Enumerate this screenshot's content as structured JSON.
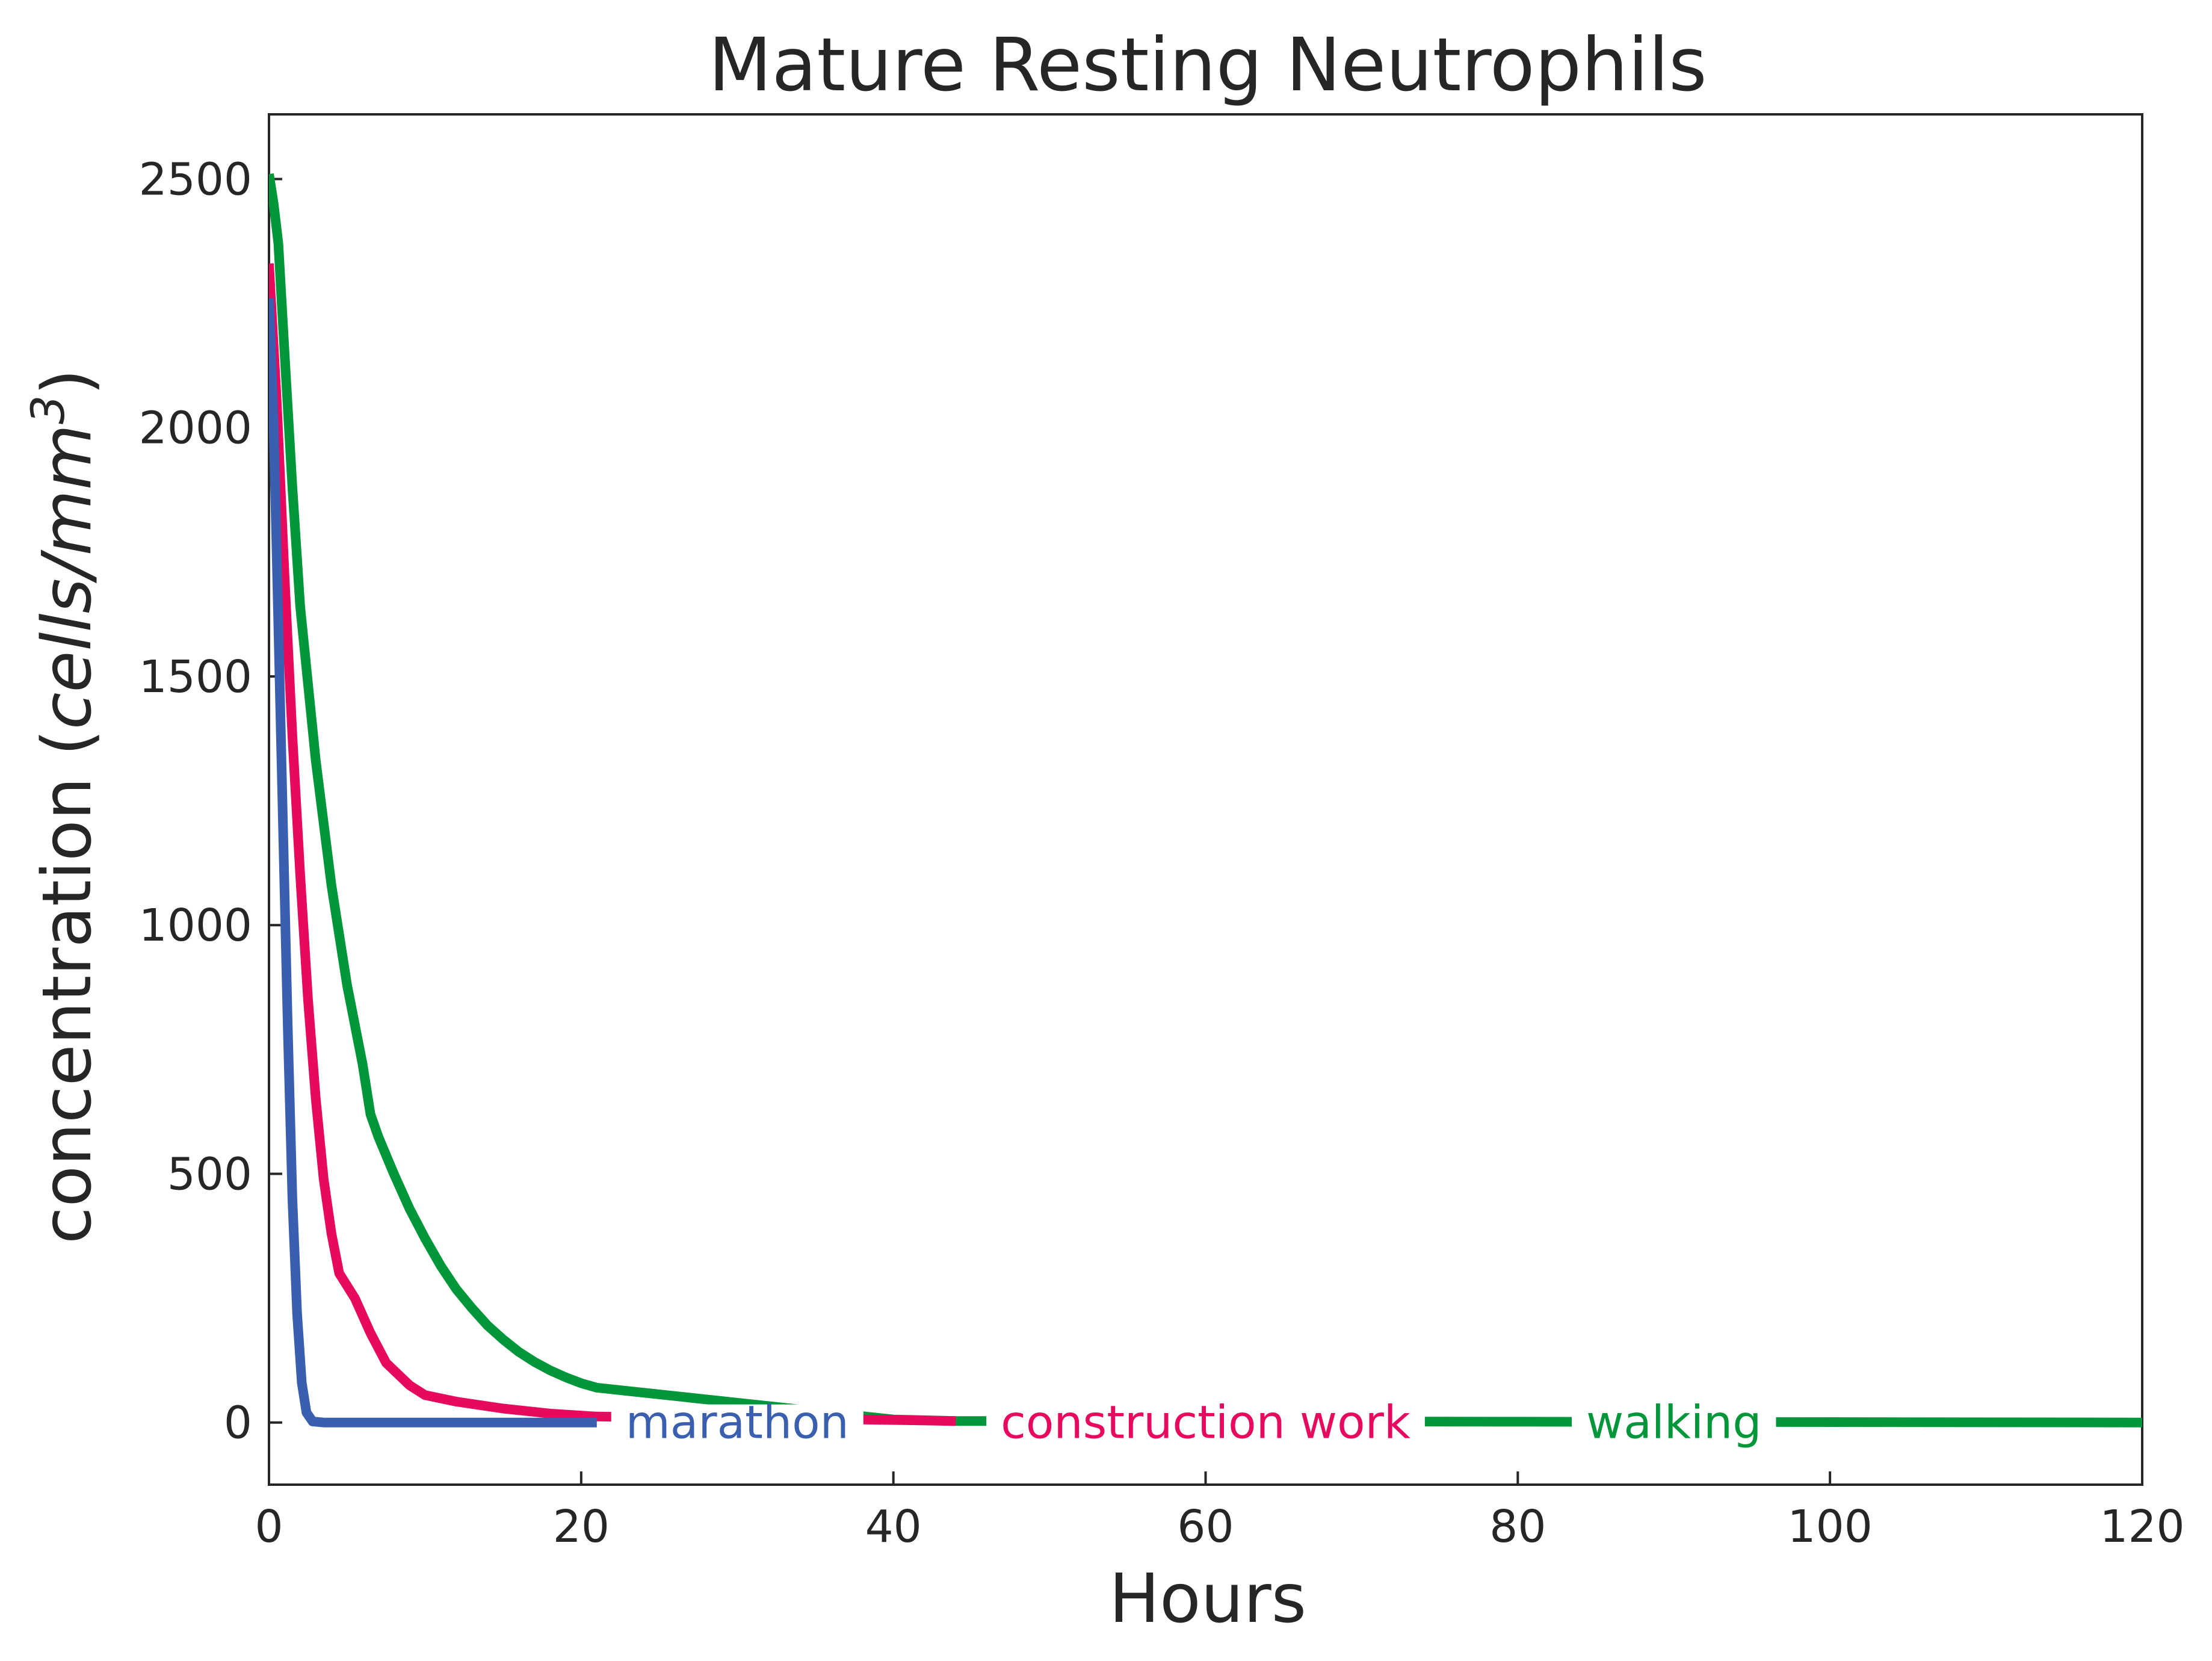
{
  "chart_data": {
    "type": "line",
    "title": "Mature Resting Neutrophils",
    "xlabel": "Hours",
    "ylabel": "concentration (cells/mm³)",
    "ylabel_parts": {
      "prefix": "concentration (",
      "unit_italic": "cells/mm",
      "superscript": "3",
      "suffix": ")"
    },
    "xlim": [
      0,
      120
    ],
    "ylim": [
      -125,
      2630
    ],
    "xticks": [
      0,
      20,
      40,
      60,
      80,
      100,
      120
    ],
    "yticks": [
      0,
      500,
      1000,
      1500,
      2000,
      2500
    ],
    "grid": false,
    "legend": "inline labels along zero line",
    "series": [
      {
        "name": "marathon",
        "color": "#3a5fae",
        "label_x": 30,
        "label_y": 0,
        "points": [
          [
            0,
            2260
          ],
          [
            0.3,
            2000
          ],
          [
            0.6,
            1600
          ],
          [
            0.9,
            1200
          ],
          [
            1.2,
            800
          ],
          [
            1.5,
            450
          ],
          [
            1.8,
            220
          ],
          [
            2.1,
            80
          ],
          [
            2.4,
            20
          ],
          [
            2.8,
            2
          ],
          [
            3.5,
            0
          ],
          [
            21,
            0
          ]
        ]
      },
      {
        "name": "construction work",
        "color": "#e6095e",
        "label_x": 60,
        "label_y": 0,
        "points": [
          [
            0,
            2330
          ],
          [
            0.5,
            2050
          ],
          [
            1,
            1700
          ],
          [
            1.5,
            1380
          ],
          [
            2,
            1100
          ],
          [
            2.5,
            850
          ],
          [
            3,
            650
          ],
          [
            3.5,
            490
          ],
          [
            4,
            380
          ],
          [
            4.5,
            300
          ],
          [
            5.5,
            250
          ],
          [
            6.5,
            180
          ],
          [
            7.5,
            120
          ],
          [
            9,
            75
          ],
          [
            10,
            55
          ],
          [
            12,
            42
          ],
          [
            15,
            28
          ],
          [
            18,
            18
          ],
          [
            21,
            12
          ],
          [
            38,
            6
          ],
          [
            44,
            3
          ]
        ]
      },
      {
        "name": "walking",
        "color": "#009639",
        "label_x": 90,
        "label_y": 0,
        "points": [
          [
            0,
            2510
          ],
          [
            0.3,
            2450
          ],
          [
            0.6,
            2370
          ],
          [
            1,
            2150
          ],
          [
            1.5,
            1880
          ],
          [
            2,
            1640
          ],
          [
            3,
            1330
          ],
          [
            4,
            1080
          ],
          [
            5,
            880
          ],
          [
            6,
            720
          ],
          [
            6.5,
            620
          ],
          [
            7,
            575
          ],
          [
            8,
            500
          ],
          [
            9,
            430
          ],
          [
            10,
            370
          ],
          [
            11,
            315
          ],
          [
            12,
            268
          ],
          [
            13,
            230
          ],
          [
            14,
            195
          ],
          [
            15,
            167
          ],
          [
            16,
            142
          ],
          [
            17,
            122
          ],
          [
            18,
            105
          ],
          [
            19,
            91
          ],
          [
            20,
            79
          ],
          [
            21,
            70
          ],
          [
            40,
            6
          ],
          [
            44,
            3
          ],
          [
            120,
            0
          ]
        ]
      }
    ]
  }
}
